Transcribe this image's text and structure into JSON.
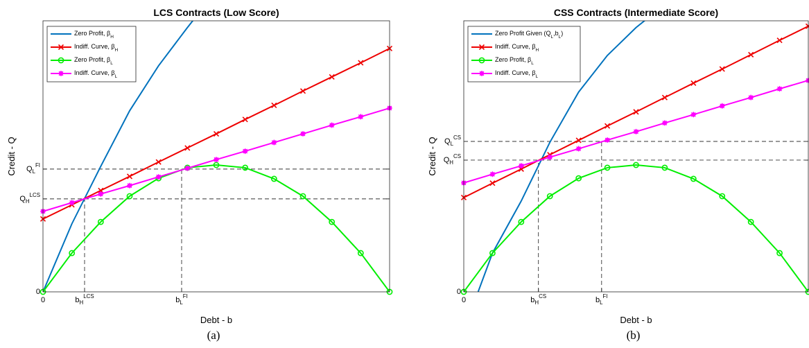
{
  "chart_data": [
    {
      "type": "line",
      "title": "LCS Contracts (Low Score)",
      "xlabel": "Debt - b",
      "ylabel": "Credit - Q",
      "caption": "(a)",
      "x": [
        0,
        1,
        2,
        3,
        4,
        5,
        6,
        7,
        8,
        9,
        10,
        11,
        12
      ],
      "xlim": [
        0,
        12
      ],
      "ylim": [
        0,
        10
      ],
      "xticks": [
        0,
        {
          "value": 1.44,
          "label": "b_H^{LCS}"
        },
        {
          "value": 4.8,
          "label": "b_L^{FI}"
        }
      ],
      "yticks": [
        0,
        {
          "value": 3.43,
          "label": "Q_H^{LCS}"
        },
        {
          "value": 4.53,
          "label": "Q_L^{FI}"
        }
      ],
      "grid": false,
      "legend": "upper left",
      "series": [
        {
          "name": "Zero Profit, β_H",
          "color": "#0072bd",
          "marker": null,
          "x": [
            0,
            1,
            2,
            3,
            4,
            5,
            6
          ],
          "values": [
            0,
            2.51,
            4.63,
            6.68,
            8.34,
            9.75,
            11.1
          ]
        },
        {
          "name": "Indiff. Curve, β_H",
          "color": "#ee0000",
          "marker": "x",
          "values": [
            2.69,
            3.21,
            3.74,
            4.26,
            4.79,
            5.31,
            5.83,
            6.36,
            6.88,
            7.41,
            7.93,
            8.45,
            8.98
          ]
        },
        {
          "name": "Zero Profit, β_L",
          "color": "#00ee00",
          "marker": "o",
          "values": [
            0,
            1.43,
            2.58,
            3.53,
            4.19,
            4.58,
            4.68,
            4.58,
            4.17,
            3.53,
            2.58,
            1.43,
            0
          ]
        },
        {
          "name": "Indiff. Curve, β_L",
          "color": "#ff00ff",
          "marker": "*",
          "values": [
            2.97,
            3.29,
            3.61,
            3.92,
            4.24,
            4.56,
            4.88,
            5.19,
            5.51,
            5.83,
            6.15,
            6.46,
            6.78
          ]
        }
      ]
    },
    {
      "type": "line",
      "title": "CSS Contracts (Intermediate Score)",
      "xlabel": "Debt - b",
      "ylabel": "Credit - Q",
      "caption": "(b)",
      "x": [
        0,
        1,
        2,
        3,
        4,
        5,
        6,
        7,
        8,
        9,
        10,
        11,
        12
      ],
      "xlim": [
        0,
        12
      ],
      "ylim": [
        0,
        10
      ],
      "xticks": [
        0,
        {
          "value": 2.6,
          "label": "b_H^{CS}"
        },
        {
          "value": 4.8,
          "label": "b_L^{FI}"
        }
      ],
      "yticks": [
        0,
        {
          "value": 4.86,
          "label": "Q_H^{CS}"
        },
        {
          "value": 5.55,
          "label": "Q_L^{CS}"
        }
      ],
      "grid": false,
      "legend": "upper left",
      "series": [
        {
          "name": "Zero Profit Given (Q_L,b_L)",
          "color": "#0072bd",
          "marker": null,
          "x": [
            0.5,
            1,
            2,
            3,
            4,
            5,
            6,
            7
          ],
          "values": [
            0,
            1.43,
            3.35,
            5.52,
            7.37,
            8.72,
            9.75,
            10.6
          ]
        },
        {
          "name": "Indiff. Curve, β_H",
          "color": "#ee0000",
          "marker": "x",
          "values": [
            3.48,
            4.01,
            4.53,
            5.06,
            5.59,
            6.12,
            6.64,
            7.17,
            7.7,
            8.22,
            8.75,
            9.28,
            9.8
          ]
        },
        {
          "name": "Zero Profit, β_L",
          "color": "#00ee00",
          "marker": "o",
          "values": [
            0,
            1.43,
            2.58,
            3.53,
            4.19,
            4.58,
            4.68,
            4.58,
            4.17,
            3.53,
            2.58,
            1.43,
            0
          ]
        },
        {
          "name": "Indiff. Curve, β_L",
          "color": "#ff00ff",
          "marker": "*",
          "values": [
            4.02,
            4.34,
            4.65,
            4.97,
            5.28,
            5.6,
            5.91,
            6.23,
            6.54,
            6.86,
            7.17,
            7.49,
            7.8
          ]
        }
      ]
    }
  ]
}
